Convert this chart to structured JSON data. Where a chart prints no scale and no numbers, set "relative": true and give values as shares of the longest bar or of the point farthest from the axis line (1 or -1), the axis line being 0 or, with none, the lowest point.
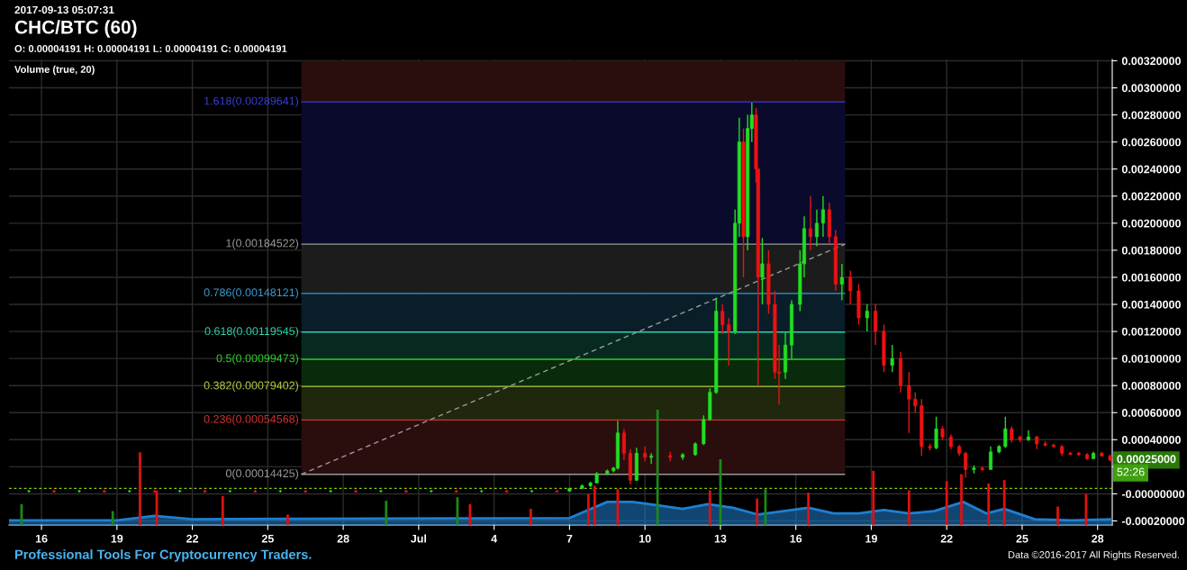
{
  "chart_data": [
    {
      "type": "candlestick",
      "title": "CHC/BTC (60)",
      "subtitle": "O: 0.00004191 H: 0.00004191 L: 0.00004191 C: 0.00004191",
      "annotations": [
        "2017-09-13 05:07:31",
        "Volume (true, 20)",
        "Professional Tools For Cryptocurrency Traders.",
        "Data ©2016-2017 All Rights Reserved.",
        "52:26",
        {
          "text": "0.00025000",
          "x": "2017-07-28T12:00",
          "y": 0.00025
        }
      ],
      "xlim": [
        "2017-06-14T17:00",
        "2017-07-28T14:00"
      ],
      "xticks": [
        {
          "value": "2017-06-16",
          "label": "16"
        },
        {
          "value": "2017-06-19",
          "label": "19"
        },
        {
          "value": "2017-06-22",
          "label": "22"
        },
        {
          "value": "2017-06-25",
          "label": "25"
        },
        {
          "value": "2017-06-28",
          "label": "28"
        },
        {
          "value": "2017-07-01",
          "label": "Jul"
        },
        {
          "value": "2017-07-04",
          "label": "4"
        },
        {
          "value": "2017-07-07",
          "label": "7"
        },
        {
          "value": "2017-07-10",
          "label": "10"
        },
        {
          "value": "2017-07-13",
          "label": "13"
        },
        {
          "value": "2017-07-16",
          "label": "16"
        },
        {
          "value": "2017-07-19",
          "label": "19"
        },
        {
          "value": "2017-07-22",
          "label": "22"
        },
        {
          "value": "2017-07-25",
          "label": "25"
        },
        {
          "value": "2017-07-28",
          "label": "28"
        }
      ],
      "ylim": [
        -0.00023,
        0.00321
      ],
      "yticks": [
        {
          "value": 0.0032,
          "label": "0.00320000"
        },
        {
          "value": 0.003,
          "label": "0.00300000"
        },
        {
          "value": 0.0028,
          "label": "0.00280000"
        },
        {
          "value": 0.0026,
          "label": "0.00260000"
        },
        {
          "value": 0.0024,
          "label": "0.00240000"
        },
        {
          "value": 0.0022,
          "label": "0.00220000"
        },
        {
          "value": 0.002,
          "label": "0.00200000"
        },
        {
          "value": 0.0018,
          "label": "0.00180000"
        },
        {
          "value": 0.0016,
          "label": "0.00160000"
        },
        {
          "value": 0.0014,
          "label": "0.00140000"
        },
        {
          "value": 0.0012,
          "label": "0.00120000"
        },
        {
          "value": 0.001,
          "label": "0.00100000"
        },
        {
          "value": 0.0008,
          "label": "0.00080000"
        },
        {
          "value": 0.0006,
          "label": "0.00060000"
        },
        {
          "value": 0.0004,
          "label": "0.00040000"
        },
        {
          "value": 0.0002,
          "label": null
        },
        {
          "value": 0,
          "label": "-0.00000000"
        },
        {
          "value": -0.0002,
          "label": "-0.00020000"
        }
      ],
      "grid": true,
      "legend": false,
      "ref_lines": [
        {
          "axis": "y",
          "value": 0.00289641,
          "label": "1.618(0.00289641)",
          "color": "#3b3bd0",
          "line_style": "solid"
        },
        {
          "axis": "y",
          "value": 0.00184522,
          "label": "1(0.00184522)",
          "color": "#9a9a9a",
          "line_style": "solid"
        },
        {
          "axis": "y",
          "value": 0.00148121,
          "label": "0.786(0.00148121)",
          "color": "#3a9ad0",
          "line_style": "solid"
        },
        {
          "axis": "y",
          "value": 0.00119545,
          "label": "0.618(0.00119545)",
          "color": "#2ed0a8",
          "line_style": "solid"
        },
        {
          "axis": "y",
          "value": 0.00099473,
          "label": "0.5(0.00099473)",
          "color": "#2ed02e",
          "line_style": "solid"
        },
        {
          "axis": "y",
          "value": 0.00079402,
          "label": "0.382(0.00079402)",
          "color": "#b0d040",
          "line_style": "solid"
        },
        {
          "axis": "y",
          "value": 0.00054568,
          "label": "0.236(0.00054568)",
          "color": "#d03030",
          "line_style": "solid"
        },
        {
          "axis": "y",
          "value": 0.00014425,
          "label": "0(0.00014425)",
          "color": "#9a9a9a",
          "line_style": "solid"
        },
        {
          "axis": "y",
          "value": 4e-05,
          "color": "#8fd000",
          "line_style": "dotted"
        }
      ],
      "bands": [
        {
          "axis": "y",
          "from": 0.00289641,
          "to": 0.0032,
          "color": "#2a0d0d"
        },
        {
          "axis": "y",
          "from": 0.00184522,
          "to": 0.00289641,
          "color": "#0a0b2c"
        },
        {
          "axis": "y",
          "from": 0.00148121,
          "to": 0.00184522,
          "color": "#1c1c1c"
        },
        {
          "axis": "y",
          "from": 0.00119545,
          "to": 0.00148121,
          "color": "#0a1e2a"
        },
        {
          "axis": "y",
          "from": 0.00099473,
          "to": 0.00119545,
          "color": "#072a20"
        },
        {
          "axis": "y",
          "from": 0.00079402,
          "to": 0.00099473,
          "color": "#0a2a0c"
        },
        {
          "axis": "y",
          "from": 0.00054568,
          "to": 0.00079402,
          "color": "#1f270c"
        },
        {
          "axis": "y",
          "from": 0.00014425,
          "to": 0.00054568,
          "color": "#2a0d0d"
        }
      ],
      "series": [
        {
          "type": "candlestick",
          "color": "#22dd22",
          "x": [
            "2017-06-15T12:00",
            "2017-06-17T12:00",
            "2017-06-19T12:00",
            "2017-06-21T12:00",
            "2017-06-23T12:00",
            "2017-06-25T12:00",
            "2017-06-27T12:00",
            "2017-06-29T12:00",
            "2017-07-01T12:00",
            "2017-07-03T12:00",
            "2017-07-05T12:00",
            "2017-07-07T00:00",
            "2017-07-07T12:00",
            "2017-07-07T20:00",
            "2017-07-08T02:00",
            "2017-07-08T12:00",
            "2017-07-08T18:00",
            "2017-07-08T22:00",
            "2017-07-09T16:00",
            "2017-07-10T06:00",
            "2017-07-11T12:00",
            "2017-07-12T00:00",
            "2017-07-12T08:00",
            "2017-07-12T14:00",
            "2017-07-12T20:00",
            "2017-07-13T14:00",
            "2017-07-13T18:00",
            "2017-07-14T02:00",
            "2017-07-14T06:00",
            "2017-07-14T16:00",
            "2017-07-15T14:00",
            "2017-07-15T20:00",
            "2017-07-16T04:00",
            "2017-07-16T08:00",
            "2017-07-16T20:00",
            "2017-07-17T02:00",
            "2017-07-17T20:00",
            "2017-07-18T20:00",
            "2017-07-19T20:00",
            "2017-07-21T14:00",
            "2017-07-23T02:00",
            "2017-07-23T18:00",
            "2017-07-24T02:00",
            "2017-07-24T08:00",
            "2017-07-25T06:00",
            "2017-07-27T20:00"
          ],
          "ohlc": [
            [
              2e-05,
              3e-05,
              1e-05,
              2e-05
            ],
            [
              2e-05,
              3e-05,
              1e-05,
              2e-05
            ],
            [
              2e-05,
              3e-05,
              1e-05,
              2e-05
            ],
            [
              2e-05,
              3e-05,
              1e-05,
              2e-05
            ],
            [
              2e-05,
              3e-05,
              1e-05,
              2e-05
            ],
            [
              2e-05,
              3e-05,
              1e-05,
              2e-05
            ],
            [
              2e-05,
              3e-05,
              1e-05,
              2e-05
            ],
            [
              2e-05,
              3e-05,
              1e-05,
              2e-05
            ],
            [
              2e-05,
              3e-05,
              1e-05,
              2e-05
            ],
            [
              2e-05,
              3e-05,
              1e-05,
              2e-05
            ],
            [
              2e-05,
              3e-05,
              1e-05,
              2e-05
            ],
            [
              2e-05,
              4e-05,
              2e-05,
              4e-05
            ],
            [
              4e-05,
              7e-05,
              4e-05,
              6e-05
            ],
            [
              6e-05,
              9e-05,
              5e-05,
              8e-05
            ],
            [
              8e-05,
              0.00016,
              8e-05,
              0.00015
            ],
            [
              0.00015,
              0.00018,
              0.00014,
              0.00017
            ],
            [
              0.00017,
              0.0002,
              0.00016,
              0.00019
            ],
            [
              0.00019,
              0.00054,
              0.00018,
              0.00045
            ],
            [
              0.0001,
              0.00034,
              0.0001,
              0.0003
            ],
            [
              0.00027,
              0.0003,
              0.00022,
              0.00028
            ],
            [
              0.00027,
              0.0003,
              0.00025,
              0.00029
            ],
            [
              0.00029,
              0.00038,
              0.00028,
              0.00037
            ],
            [
              0.00037,
              0.00058,
              0.00036,
              0.00055
            ],
            [
              0.00055,
              0.00078,
              0.00054,
              0.00075
            ],
            [
              0.00075,
              0.00145,
              0.00074,
              0.00135
            ],
            [
              0.0012,
              0.0021,
              0.00118,
              0.002
            ],
            [
              0.002,
              0.00278,
              0.0019,
              0.0026
            ],
            [
              0.0019,
              0.0028,
              0.0018,
              0.0027
            ],
            [
              0.0027,
              0.00289,
              0.0026,
              0.0028
            ],
            [
              0.0016,
              0.00189,
              0.0014,
              0.0017
            ],
            [
              0.0009,
              0.0012,
              0.00085,
              0.0011
            ],
            [
              0.0011,
              0.00143,
              0.001,
              0.0014
            ],
            [
              0.0014,
              0.0018,
              0.00135,
              0.0017
            ],
            [
              0.0017,
              0.00205,
              0.0016,
              0.00196
            ],
            [
              0.0019,
              0.0021,
              0.00183,
              0.002
            ],
            [
              0.002,
              0.0022,
              0.0019,
              0.0021
            ],
            [
              0.00155,
              0.0017,
              0.00143,
              0.0016
            ],
            [
              0.0013,
              0.0014,
              0.0012,
              0.00135
            ],
            [
              0.00095,
              0.0011,
              0.0009,
              0.001
            ],
            [
              0.00034,
              0.00057,
              0.00033,
              0.00048
            ],
            [
              0.00018,
              0.00021,
              0.00015,
              0.00019
            ],
            [
              0.00018,
              0.00035,
              0.00018,
              0.00031
            ],
            [
              0.00031,
              0.00036,
              0.0003,
              0.00035
            ],
            [
              0.00035,
              0.00057,
              0.00034,
              0.00048
            ],
            [
              0.0004,
              0.00047,
              0.00039,
              0.00042
            ],
            [
              0.00026,
              0.00031,
              0.00026,
              0.0003
            ]
          ]
        },
        {
          "type": "candlestick",
          "color": "#ee1111",
          "x": [
            "2017-06-16T12:00",
            "2017-06-18T12:00",
            "2017-06-20T12:00",
            "2017-06-22T12:00",
            "2017-06-24T12:00",
            "2017-06-26T12:00",
            "2017-06-28T12:00",
            "2017-06-30T12:00",
            "2017-07-02T12:00",
            "2017-07-04T12:00",
            "2017-07-06T12:00",
            "2017-07-09T04:00",
            "2017-07-09T10:00",
            "2017-07-10T00:00",
            "2017-07-11T00:00",
            "2017-07-13T02:00",
            "2017-07-13T08:00",
            "2017-07-13T22:00",
            "2017-07-14T10:00",
            "2017-07-14T12:00",
            "2017-07-14T22:00",
            "2017-07-15T04:00",
            "2017-07-15T08:00",
            "2017-07-16T14:00",
            "2017-07-17T08:00",
            "2017-07-17T14:00",
            "2017-07-18T04:00",
            "2017-07-18T12:00",
            "2017-07-19T04:00",
            "2017-07-19T12:00",
            "2017-07-20T04:00",
            "2017-07-20T12:00",
            "2017-07-20T18:00",
            "2017-07-21T00:00",
            "2017-07-21T08:00",
            "2017-07-21T20:00",
            "2017-07-22T04:00",
            "2017-07-22T12:00",
            "2017-07-22T18:00",
            "2017-07-23T10:00",
            "2017-07-24T14:00",
            "2017-07-24T22:00",
            "2017-07-25T14:00",
            "2017-07-25T22:00",
            "2017-07-26T06:00",
            "2017-07-26T14:00",
            "2017-07-26T22:00",
            "2017-07-27T06:00",
            "2017-07-27T14:00",
            "2017-07-28T04:00",
            "2017-07-28T12:00"
          ],
          "ohlc": [
            [
              2e-05,
              3e-05,
              1e-05,
              1.5e-05
            ],
            [
              2e-05,
              3e-05,
              1e-05,
              1.5e-05
            ],
            [
              2e-05,
              3e-05,
              1e-05,
              1.5e-05
            ],
            [
              2e-05,
              3e-05,
              1e-05,
              1.5e-05
            ],
            [
              2e-05,
              3e-05,
              1e-05,
              1.5e-05
            ],
            [
              2e-05,
              3e-05,
              1e-05,
              1.5e-05
            ],
            [
              2e-05,
              3e-05,
              1e-05,
              1.5e-05
            ],
            [
              2e-05,
              3e-05,
              1e-05,
              1.5e-05
            ],
            [
              2e-05,
              3e-05,
              1e-05,
              1.5e-05
            ],
            [
              2e-05,
              3e-05,
              1e-05,
              1.5e-05
            ],
            [
              2e-05,
              3e-05,
              1e-05,
              1.5e-05
            ],
            [
              0.00045,
              0.00048,
              0.00025,
              0.0003
            ],
            [
              0.0003,
              0.00033,
              7e-05,
              0.0001
            ],
            [
              0.0003,
              0.00035,
              0.00024,
              0.00027
            ],
            [
              0.00028,
              0.00031,
              0.00024,
              0.00027
            ],
            [
              0.00135,
              0.0014,
              0.00118,
              0.00125
            ],
            [
              0.00125,
              0.0013,
              0.00095,
              0.0012
            ],
            [
              0.0026,
              0.0027,
              0.0016,
              0.0019
            ],
            [
              0.0028,
              0.00285,
              0.0023,
              0.0024
            ],
            [
              0.0024,
              0.0024,
              0.000795,
              0.0016
            ],
            [
              0.0017,
              0.0018,
              0.00133,
              0.0014
            ],
            [
              0.0014,
              0.0015,
              0.00085,
              0.0009
            ],
            [
              0.0009,
              0.0011,
              0.00066,
              0.00089
            ],
            [
              0.00196,
              0.0022,
              0.0018,
              0.0019
            ],
            [
              0.0021,
              0.00215,
              0.00185,
              0.0019
            ],
            [
              0.0019,
              0.00195,
              0.0015,
              0.00155
            ],
            [
              0.0016,
              0.00165,
              0.0014,
              0.0015
            ],
            [
              0.0015,
              0.00155,
              0.00125,
              0.0013
            ],
            [
              0.00135,
              0.0014,
              0.0011,
              0.0012
            ],
            [
              0.0012,
              0.00125,
              0.0009,
              0.00095
            ],
            [
              0.001,
              0.00105,
              0.00075,
              0.0008
            ],
            [
              0.0008,
              0.0009,
              0.00045,
              0.0007
            ],
            [
              0.0007,
              0.00075,
              0.0006,
              0.00065
            ],
            [
              0.00065,
              0.0007,
              0.00028,
              0.00035
            ],
            [
              0.00035,
              0.00037,
              0.00032,
              0.00034
            ],
            [
              0.00048,
              0.0005,
              0.0004,
              0.00042
            ],
            [
              0.00042,
              0.00044,
              0.00033,
              0.00035
            ],
            [
              0.00035,
              0.00036,
              0.00028,
              0.0003
            ],
            [
              0.0003,
              0.00031,
              0.00012,
              0.00018
            ],
            [
              0.00019,
              0.0002,
              0.00017,
              0.00018
            ],
            [
              0.00048,
              0.0005,
              0.00038,
              0.0004
            ],
            [
              0.00042,
              0.00043,
              0.00038,
              0.0004
            ],
            [
              0.00042,
              0.00043,
              0.00033,
              0.00037
            ],
            [
              0.00037,
              0.00039,
              0.00035,
              0.00036
            ],
            [
              0.00036,
              0.00037,
              0.00034,
              0.00035
            ],
            [
              0.00035,
              0.00036,
              0.00028,
              0.0003
            ],
            [
              0.0003,
              0.00031,
              0.00029,
              0.00029
            ],
            [
              0.0003,
              0.00031,
              0.00028,
              0.00029
            ],
            [
              0.00029,
              0.0003,
              0.00025,
              0.00026
            ],
            [
              0.0003,
              0.00031,
              0.00028,
              0.00028
            ],
            [
              0.00028,
              0.00029,
              0.00024,
              0.00025
            ]
          ]
        },
        {
          "type": "line",
          "color": "#9a9a9a",
          "line_style": "dashed",
          "x": [
            "2017-06-26T08:00",
            "2017-07-17T23:00"
          ],
          "values": [
            0.00014425,
            0.00184522
          ]
        }
      ]
    },
    {
      "type": "bar",
      "relative": true,
      "tick_labels": false,
      "xlim": [
        "2017-06-14T17:00",
        "2017-07-28T14:00"
      ],
      "series": [
        {
          "type": "bar",
          "color": "#1a8a1a",
          "x": [
            "2017-06-15T05:00",
            "2017-06-18T20:00",
            "2017-06-29T17:00",
            "2017-07-02T13:00",
            "2017-07-10T12:00",
            "2017-07-13T00:00",
            "2017-07-14T19:00"
          ],
          "values": [
            0.18,
            0.12,
            0.21,
            0.24,
            1.0,
            0.57,
            0.31
          ]
        },
        {
          "type": "bar",
          "color": "#dd1111",
          "x": [
            "2017-06-19T22:00",
            "2017-06-20T14:00",
            "2017-06-23T05:00",
            "2017-06-25T19:00",
            "2017-07-03T01:00",
            "2017-07-05T11:00",
            "2017-07-07T18:00",
            "2017-07-08T00:00",
            "2017-07-08T22:00",
            "2017-07-12T14:00",
            "2017-07-14T11:00",
            "2017-07-16T12:00",
            "2017-07-19T02:00",
            "2017-07-20T12:00",
            "2017-07-22T00:00",
            "2017-07-22T14:00",
            "2017-07-23T16:00",
            "2017-07-24T07:00",
            "2017-07-26T10:00",
            "2017-07-27T13:00"
          ],
          "values": [
            0.63,
            0.3,
            0.25,
            0.09,
            0.18,
            0.14,
            0.27,
            0.34,
            0.31,
            0.3,
            0.23,
            0.28,
            0.47,
            0.3,
            0.38,
            0.44,
            0.36,
            0.39,
            0.16,
            0.27
          ]
        },
        {
          "type": "area",
          "color": "#1f7fd0",
          "x": [
            "2017-06-14T17:00",
            "2017-06-19T00:00",
            "2017-06-20T12:00",
            "2017-06-22T00:00",
            "2017-07-07T00:00",
            "2017-07-08T12:00",
            "2017-07-09T12:00",
            "2017-07-10T12:00",
            "2017-07-11T12:00",
            "2017-07-12T12:00",
            "2017-07-13T12:00",
            "2017-07-14T12:00",
            "2017-07-15T12:00",
            "2017-07-16T12:00",
            "2017-07-17T12:00",
            "2017-07-18T12:00",
            "2017-07-19T12:00",
            "2017-07-20T12:00",
            "2017-07-21T12:00",
            "2017-07-22T16:00",
            "2017-07-23T14:00",
            "2017-07-24T07:00",
            "2017-07-25T12:00",
            "2017-07-27T00:00",
            "2017-07-28T14:00"
          ],
          "values": [
            0.04,
            0.04,
            0.08,
            0.05,
            0.06,
            0.2,
            0.2,
            0.17,
            0.14,
            0.18,
            0.15,
            0.09,
            0.12,
            0.15,
            0.1,
            0.1,
            0.13,
            0.1,
            0.12,
            0.2,
            0.1,
            0.14,
            0.05,
            0.04,
            0.05
          ]
        }
      ]
    }
  ]
}
